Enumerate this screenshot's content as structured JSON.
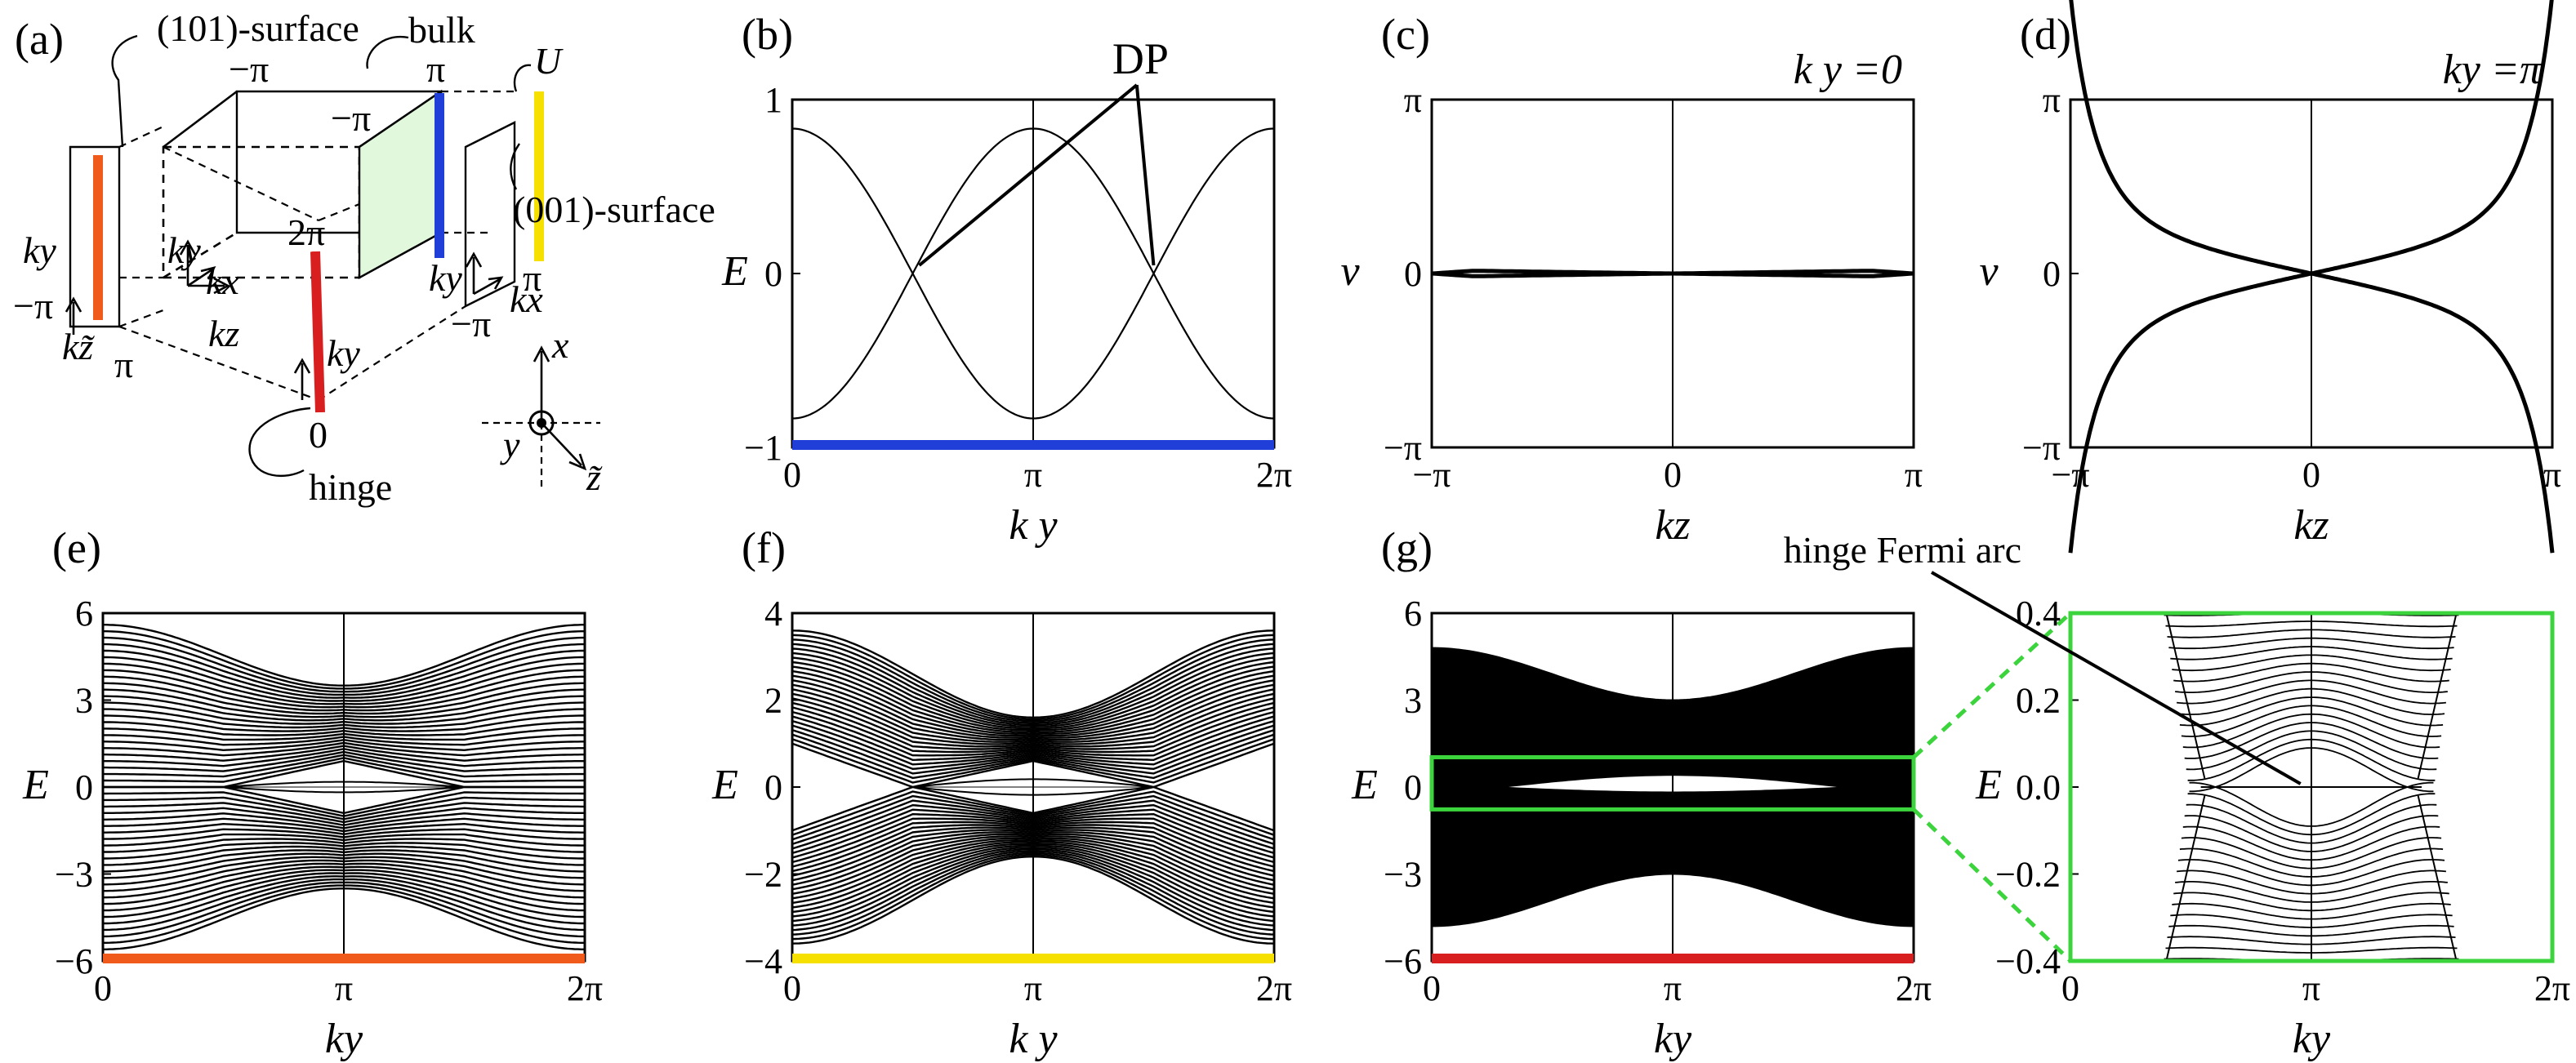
{
  "figure": {
    "schematic": {
      "panel_label": "(a)",
      "labels": {
        "surface101": "(101)-surface",
        "bulk": "bulk",
        "U": "U",
        "surface001": "(001)-surface",
        "hinge": "hinge",
        "minus_pi_top": "−π",
        "pi_top": "π",
        "minus_pi_mid": "−π",
        "two_pi": "2π",
        "zero": "0",
        "pi_bottom": "π",
        "minus_pi_left": "−π",
        "pi_right": "π",
        "minus_pi_right": "−π",
        "ky_left": "ky",
        "kz_tilde": "kz̃",
        "ky_a": "ky",
        "kx_a": "kx",
        "kz_a": "kz",
        "ky_b": "ky",
        "ky_c": "ky",
        "kx_c": "kx",
        "axis_x": "x",
        "axis_y": "y",
        "axis_z": "z̃"
      },
      "colors": {
        "surface101": "#f05a1a",
        "bulk": "#1f3fd8",
        "U": "#f5e000",
        "hinge": "#d81e1e",
        "bulk_face": "#e2f8dc"
      }
    },
    "dp_label": "DP",
    "hinge_label": "hinge Fermi arc"
  },
  "chart_data": [
    {
      "id": "b",
      "panel": "(b)",
      "type": "line",
      "xlabel": "k y",
      "ylabel": "E",
      "x_ticks": [
        "0",
        "π",
        "2π"
      ],
      "y_ticks": [
        "−1",
        "0",
        "1"
      ],
      "xlim": [
        0,
        6.2832
      ],
      "ylim": [
        -1.2,
        1.2
      ],
      "series": [
        {
          "x": [
            0,
            0.785,
            1.571,
            2.356,
            3.142,
            3.927,
            4.712,
            5.498,
            6.283
          ],
          "values": [
            1,
            0.707,
            0,
            -0.707,
            -1,
            -0.707,
            0,
            0.707,
            1
          ]
        },
        {
          "x": [
            0,
            0.785,
            1.571,
            2.356,
            3.142,
            3.927,
            4.712,
            5.498,
            6.283
          ],
          "values": [
            -1,
            -0.707,
            0,
            0.707,
            1,
            0.707,
            0,
            -0.707,
            -1
          ]
        }
      ],
      "annotations": [
        {
          "text": "DP",
          "points": [
            [
              1.571,
              0
            ],
            [
              4.712,
              0
            ]
          ]
        }
      ],
      "baseline_color": "#1f3fd8"
    },
    {
      "id": "c",
      "panel": "(c)",
      "type": "line",
      "title": "k y =0",
      "xlabel": "kz",
      "ylabel": "ν",
      "x_ticks": [
        "−π",
        "0",
        "π"
      ],
      "y_ticks": [
        "−π",
        "0",
        "π"
      ],
      "xlim": [
        -3.1416,
        3.1416
      ],
      "ylim": [
        -3.1416,
        3.1416
      ],
      "series": [
        {
          "x": [
            -3.14,
            -2.6,
            -1.6,
            0,
            1.6,
            2.6,
            3.14
          ],
          "values": [
            0,
            0.05,
            0.03,
            0,
            -0.03,
            -0.05,
            0
          ]
        },
        {
          "x": [
            -3.14,
            -2.6,
            -1.6,
            0,
            1.6,
            2.6,
            3.14
          ],
          "values": [
            0,
            -0.05,
            -0.03,
            0,
            0.03,
            0.05,
            0
          ]
        }
      ]
    },
    {
      "id": "d",
      "panel": "(d)",
      "type": "line",
      "title": "ky =π",
      "xlabel": "kz",
      "ylabel": "ν",
      "x_ticks": [
        "−π",
        "0",
        "π"
      ],
      "y_ticks": [
        "−π",
        "0",
        "π"
      ],
      "xlim": [
        -3.1416,
        3.1416
      ],
      "ylim": [
        -3.1416,
        3.1416
      ],
      "series": [
        {
          "x": [
            -3.14,
            -2.5,
            -1.8,
            -1.2,
            -0.6,
            0,
            0.6,
            1.2,
            1.8,
            2.5,
            3.14
          ],
          "values": [
            3.14,
            1.7,
            0.95,
            0.55,
            0.25,
            0,
            -0.25,
            -0.55,
            -0.95,
            -1.7,
            -3.14
          ]
        },
        {
          "x": [
            -3.14,
            -2.5,
            -1.8,
            -1.2,
            -0.6,
            0,
            0.6,
            1.2,
            1.8,
            2.5,
            3.14
          ],
          "values": [
            -3.14,
            -1.7,
            -0.95,
            -0.55,
            -0.25,
            0,
            0.25,
            0.55,
            0.95,
            1.7,
            3.14
          ]
        }
      ]
    },
    {
      "id": "e",
      "panel": "(e)",
      "type": "area",
      "xlabel": "ky",
      "ylabel": "E",
      "x_ticks": [
        "0",
        "π",
        "2π"
      ],
      "y_ticks": [
        "−6",
        "−3",
        "0",
        "3",
        "6"
      ],
      "xlim": [
        0,
        6.2832
      ],
      "ylim": [
        -6,
        6
      ],
      "band_max": {
        "x": [
          0,
          3.142,
          6.283
        ],
        "values": [
          5.6,
          3.5,
          5.6
        ]
      },
      "gap_edge": {
        "x": [
          0,
          1.571,
          3.142,
          4.712,
          6.283
        ],
        "values": [
          0.0,
          0.0,
          0.9,
          0.0,
          0.0
        ]
      },
      "dirac_x": [
        1.571,
        4.712
      ],
      "baseline_color": "#f05a1a"
    },
    {
      "id": "f",
      "panel": "(f)",
      "type": "area",
      "xlabel": "k y",
      "ylabel": "E",
      "x_ticks": [
        "0",
        "π",
        "2π"
      ],
      "y_ticks": [
        "−4",
        "−2",
        "0",
        "2",
        "4"
      ],
      "xlim": [
        0,
        6.2832
      ],
      "ylim": [
        -4,
        4
      ],
      "band_max": {
        "x": [
          0,
          3.142,
          6.283
        ],
        "values": [
          3.6,
          1.6,
          3.6
        ]
      },
      "gap_edge": {
        "x": [
          0,
          1.571,
          3.142,
          4.712,
          6.283
        ],
        "values": [
          1.0,
          0.0,
          0.6,
          0.0,
          1.0
        ]
      },
      "dirac_x": [
        1.571,
        4.712
      ],
      "baseline_color": "#f5e000"
    },
    {
      "id": "g",
      "panel": "(g)",
      "type": "area",
      "xlabel": "ky",
      "ylabel": "E",
      "x_ticks": [
        "0",
        "π",
        "2π"
      ],
      "y_ticks": [
        "−6",
        "−3",
        "0",
        "3",
        "6"
      ],
      "xlim": [
        0,
        6.2832
      ],
      "ylim": [
        -7,
        7
      ],
      "band_max": {
        "x": [
          0,
          3.142,
          6.283
        ],
        "values": [
          5.6,
          3.5,
          5.6
        ]
      },
      "zoom_window": {
        "ylim": [
          -0.9,
          1.2
        ]
      },
      "baseline_color": "#d81e1e",
      "box_color": "#3cd43c"
    },
    {
      "id": "g_zoom",
      "type": "line",
      "xlabel": "ky",
      "ylabel": "E",
      "x_ticks": [
        "0",
        "π",
        "2π"
      ],
      "y_ticks": [
        "−0.4",
        "−0.2",
        "0.0",
        "0.2",
        "0.4"
      ],
      "xlim": [
        0,
        6.2832
      ],
      "ylim": [
        -0.4,
        0.4
      ],
      "hinge_arc": {
        "x": [
          1.7,
          4.58
        ],
        "value": 0.0
      },
      "annotations": [
        {
          "text": "hinge Fermi arc",
          "point": [
            3.0,
            0.0
          ]
        }
      ],
      "box_color": "#3cd43c"
    }
  ]
}
